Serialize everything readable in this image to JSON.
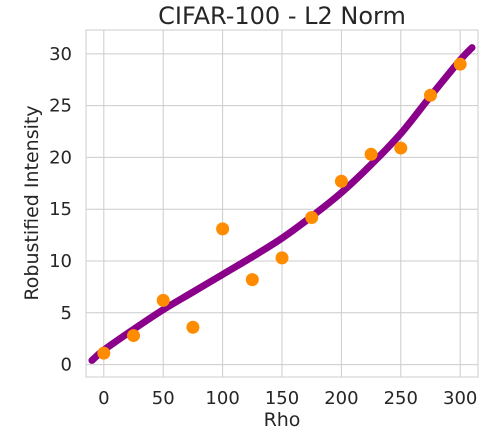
{
  "chart_data": {
    "type": "scatter",
    "title": "CIFAR-100 - L2 Norm",
    "xlabel": "Rho",
    "ylabel": "Robustified Intensity",
    "xlim": [
      -15,
      315
    ],
    "ylim": [
      -1.2,
      32.3
    ],
    "xticks": [
      0,
      50,
      100,
      150,
      200,
      250,
      300
    ],
    "yticks": [
      0,
      5,
      10,
      15,
      20,
      25,
      30
    ],
    "grid": true,
    "series": [
      {
        "kind": "points",
        "color": "#ff8c00",
        "x": [
          0,
          25,
          50,
          75,
          100,
          125,
          150,
          175,
          200,
          225,
          250,
          275,
          300
        ],
        "y": [
          1.1,
          2.8,
          6.2,
          3.6,
          13.1,
          8.2,
          10.3,
          14.2,
          17.7,
          20.3,
          20.9,
          26.0,
          29.0
        ]
      },
      {
        "kind": "fit-line",
        "color": "#8b008b",
        "x": [
          -10,
          0,
          25,
          50,
          75,
          100,
          125,
          150,
          175,
          200,
          225,
          250,
          275,
          300,
          310
        ],
        "y": [
          0.4,
          1.4,
          3.4,
          5.3,
          7.0,
          8.7,
          10.4,
          12.2,
          14.3,
          16.6,
          19.3,
          22.3,
          25.9,
          29.4,
          30.6
        ]
      }
    ]
  }
}
